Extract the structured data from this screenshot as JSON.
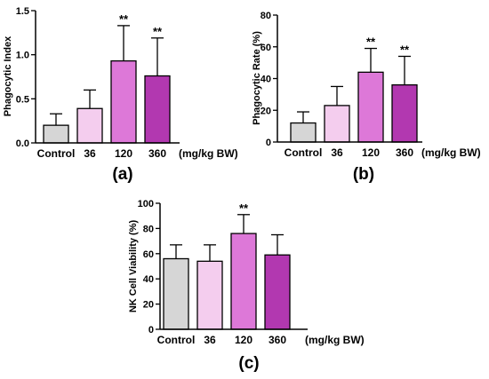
{
  "figure": {
    "panels": [
      {
        "id": "a",
        "label": "(a)"
      },
      {
        "id": "b",
        "label": "(b)"
      },
      {
        "id": "c",
        "label": "(c)"
      }
    ]
  },
  "chart_data": [
    {
      "type": "bar",
      "panel_label": "(a)",
      "categories": [
        "Control",
        "36",
        "120",
        "360"
      ],
      "x_unit_label": "(mg/kg BW)",
      "ylabel": "Phagocytic Index",
      "ylim": [
        0,
        1.5
      ],
      "yticks": [
        0.0,
        0.5,
        1.0,
        1.5
      ],
      "ytick_labels": [
        "0.0",
        "0.5",
        "1.0",
        "1.5"
      ],
      "values": [
        0.2,
        0.39,
        0.93,
        0.76
      ],
      "errors": [
        0.13,
        0.21,
        0.4,
        0.43
      ],
      "significance": [
        "",
        "",
        "**",
        "**"
      ],
      "bar_colors": [
        "#d6d6d6",
        "#f4cdee",
        "#dd78d8",
        "#b238b0"
      ],
      "grid": false
    },
    {
      "type": "bar",
      "panel_label": "(b)",
      "categories": [
        "Control",
        "36",
        "120",
        "360"
      ],
      "x_unit_label": "(mg/kg BW)",
      "ylabel": "Phagocytic Rate (%)",
      "ylim": [
        0,
        80
      ],
      "yticks": [
        0,
        20,
        40,
        60,
        80
      ],
      "ytick_labels": [
        "0",
        "20",
        "40",
        "60",
        "80"
      ],
      "values": [
        12,
        23,
        44,
        36
      ],
      "errors": [
        7,
        12,
        15,
        18
      ],
      "significance": [
        "",
        "",
        "**",
        "**"
      ],
      "bar_colors": [
        "#d6d6d6",
        "#f4cdee",
        "#dd78d8",
        "#b238b0"
      ],
      "grid": false
    },
    {
      "type": "bar",
      "panel_label": "(c)",
      "categories": [
        "Control",
        "36",
        "120",
        "360"
      ],
      "x_unit_label": "(mg/kg BW)",
      "ylabel": "NK Cell Viability (%)",
      "ylim": [
        0,
        100
      ],
      "yticks": [
        0,
        20,
        40,
        60,
        80,
        100
      ],
      "ytick_labels": [
        "0",
        "20",
        "40",
        "60",
        "80",
        "100"
      ],
      "values": [
        56,
        54,
        76,
        59
      ],
      "errors": [
        11,
        13,
        15,
        16
      ],
      "significance": [
        "",
        "",
        "**",
        ""
      ],
      "bar_colors": [
        "#d6d6d6",
        "#f4cdee",
        "#dd78d8",
        "#b238b0"
      ],
      "grid": false
    }
  ]
}
